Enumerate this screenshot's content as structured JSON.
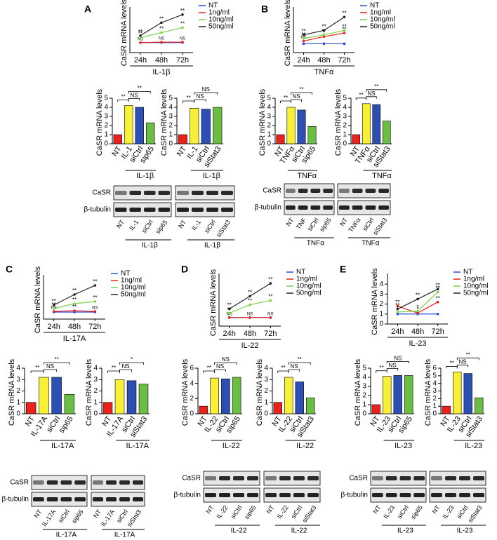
{
  "chart_data": [
    {
      "type": "line",
      "letter": "A",
      "ylabel": "CaSR mRNA levels",
      "xlabel": "IL-1β",
      "categories": [
        "24h",
        "48h",
        "72h"
      ],
      "ylim": [
        0,
        4
      ],
      "series": [
        {
          "name": "NT",
          "color": "#2b4bd6",
          "values": [
            1,
            1,
            1
          ],
          "annotations": [
            null,
            null,
            null
          ]
        },
        {
          "name": "1ng/ml",
          "color": "#e0251f",
          "values": [
            1,
            1.05,
            1.05
          ],
          "annotations": [
            "NS",
            "NS",
            "NS"
          ]
        },
        {
          "name": "10ng/ml",
          "color": "#7fd14a",
          "values": [
            1.5,
            2,
            2.5
          ],
          "annotations": [
            "**",
            "**",
            "**"
          ]
        },
        {
          "name": "50ng/ml",
          "color": "#222222",
          "values": [
            1.7,
            3,
            3.8
          ],
          "annotations": [
            "**",
            "**",
            "**"
          ]
        }
      ]
    },
    {
      "type": "bar",
      "ylabel": "CaSR mRNA levels",
      "categories": [
        "NT",
        "IL-1",
        "siCtrl",
        "sip65"
      ],
      "group": "IL-1β",
      "colors": [
        "#e8231e",
        "#f7ef3a",
        "#2d4fb0",
        "#6cbd45"
      ],
      "values": [
        1,
        4.2,
        4,
        2.3
      ],
      "ylim": [
        0,
        5
      ],
      "yticks": [
        0,
        1,
        2,
        3,
        4,
        5
      ],
      "brackets": [
        {
          "label": "**",
          "between": [
            "NT",
            "IL-1"
          ]
        },
        {
          "label": "NS",
          "between": [
            "IL-1",
            "siCtrl"
          ]
        },
        {
          "label": "**",
          "between": [
            "IL-1",
            "sip65"
          ]
        }
      ]
    },
    {
      "type": "bar",
      "ylabel": "CaSR mRNA levels",
      "categories": [
        "NT",
        "IL-1",
        "siCtrl",
        "siStat3"
      ],
      "group": "IL-1β",
      "colors": [
        "#e8231e",
        "#f7ef3a",
        "#2d4fb0",
        "#6cbd45"
      ],
      "values": [
        1,
        3.9,
        3.8,
        4
      ],
      "ylim": [
        0,
        5
      ],
      "yticks": [
        0,
        1,
        2,
        3,
        4,
        5
      ],
      "brackets": [
        {
          "label": "**",
          "between": [
            "NT",
            "IL-1"
          ]
        },
        {
          "label": "NS",
          "between": [
            "IL-1",
            "siCtrl"
          ]
        },
        {
          "label": "NS",
          "between": [
            "IL-1",
            "siStat3"
          ]
        }
      ]
    },
    {
      "type": "line",
      "letter": "B",
      "ylabel": "CaSR mRNA levels",
      "xlabel": "TNFα",
      "categories": [
        "24h",
        "48h",
        "72h"
      ],
      "ylim": [
        0,
        4.5
      ],
      "series": [
        {
          "name": "NT",
          "color": "#2b4bd6",
          "values": [
            1,
            1,
            1
          ],
          "annotations": [
            null,
            null,
            null
          ]
        },
        {
          "name": "1ng/ml",
          "color": "#e0251f",
          "values": [
            1.3,
            1.8,
            2.2
          ],
          "annotations": [
            "NS",
            "*",
            "**"
          ]
        },
        {
          "name": "10ng/ml",
          "color": "#7fd14a",
          "values": [
            1.6,
            2,
            2.5
          ],
          "annotations": [
            "**",
            "**",
            "**"
          ]
        },
        {
          "name": "50ng/ml",
          "color": "#222222",
          "values": [
            2,
            2.5,
            4
          ],
          "annotations": [
            "**",
            "**",
            "**"
          ]
        }
      ]
    },
    {
      "type": "bar",
      "ylabel": "CaSR mRNA levels",
      "categories": [
        "NT",
        "TNFα",
        "siCtrl",
        "sip65"
      ],
      "group": "TNFα",
      "colors": [
        "#e8231e",
        "#f7ef3a",
        "#2d4fb0",
        "#6cbd45"
      ],
      "values": [
        1,
        4,
        3.7,
        1.9
      ],
      "ylim": [
        0,
        5
      ],
      "yticks": [
        0,
        1,
        2,
        3,
        4,
        5
      ],
      "brackets": [
        {
          "label": "**",
          "between": [
            "NT",
            "TNFα"
          ]
        },
        {
          "label": "NS",
          "between": [
            "TNFα",
            "siCtrl"
          ]
        },
        {
          "label": "**",
          "between": [
            "TNFα",
            "sip65"
          ]
        }
      ]
    },
    {
      "type": "bar",
      "ylabel": "CaSR mRNA levels",
      "categories": [
        "NT",
        "TNFα",
        "siCtrl",
        "siStat3"
      ],
      "group": "TNFα",
      "colors": [
        "#e8231e",
        "#f7ef3a",
        "#2d4fb0",
        "#6cbd45"
      ],
      "values": [
        1,
        4.4,
        4.3,
        2.5
      ],
      "ylim": [
        0,
        5
      ],
      "yticks": [
        0,
        1,
        2,
        3,
        4,
        5
      ],
      "brackets": [
        {
          "label": "**",
          "between": [
            "NT",
            "TNFα"
          ]
        },
        {
          "label": "NS",
          "between": [
            "TNFα",
            "siCtrl"
          ]
        },
        {
          "label": "**",
          "between": [
            "TNFα",
            "siStat3"
          ]
        }
      ]
    },
    {
      "type": "line",
      "letter": "C",
      "ylabel": "CaSR mRNA levels",
      "xlabel": "IL-17A",
      "categories": [
        "24h",
        "48h",
        "72h"
      ],
      "ylim": [
        0,
        5.5
      ],
      "series": [
        {
          "name": "NT",
          "color": "#2b4bd6",
          "values": [
            1,
            1,
            1
          ],
          "annotations": [
            null,
            null,
            null
          ]
        },
        {
          "name": "1ng/ml",
          "color": "#e0251f",
          "values": [
            1.1,
            1.2,
            1.1
          ],
          "annotations": [
            "NS",
            "**",
            "NS"
          ]
        },
        {
          "name": "10ng/ml",
          "color": "#7fd14a",
          "values": [
            1.5,
            2.2,
            2.5
          ],
          "annotations": [
            "**",
            "**",
            "**"
          ]
        },
        {
          "name": "50ng/ml",
          "color": "#222222",
          "values": [
            2,
            3.5,
            4.8
          ],
          "annotations": [
            "**",
            "**",
            "**"
          ]
        }
      ]
    },
    {
      "type": "bar",
      "ylabel": "CaSR mRNA levels",
      "categories": [
        "NT",
        "IL-17A",
        "siCtrl",
        "sip65"
      ],
      "group": "IL-17A",
      "colors": [
        "#e8231e",
        "#f7ef3a",
        "#2d4fb0",
        "#6cbd45"
      ],
      "values": [
        1,
        3.2,
        3.2,
        1.7
      ],
      "ylim": [
        0,
        4
      ],
      "yticks": [
        0,
        1,
        2,
        3,
        4
      ],
      "brackets": [
        {
          "label": "**",
          "between": [
            "NT",
            "IL-17A"
          ]
        },
        {
          "label": "NS",
          "between": [
            "IL-17A",
            "siCtrl"
          ]
        },
        {
          "label": "**",
          "between": [
            "IL-17A",
            "sip65"
          ]
        }
      ]
    },
    {
      "type": "bar",
      "ylabel": "CaSR mRNA levels",
      "categories": [
        "NT",
        "IL-17A",
        "siCtrl",
        "siStat3"
      ],
      "group": "IL-17A",
      "colors": [
        "#e8231e",
        "#f7ef3a",
        "#2d4fb0",
        "#6cbd45"
      ],
      "values": [
        1,
        3,
        2.9,
        2.6
      ],
      "ylim": [
        0,
        4
      ],
      "yticks": [
        0,
        1,
        2,
        3,
        4
      ],
      "brackets": [
        {
          "label": "**",
          "between": [
            "NT",
            "IL-17A"
          ]
        },
        {
          "label": "NS",
          "between": [
            "IL-17A",
            "siCtrl"
          ]
        },
        {
          "label": "*",
          "between": [
            "IL-17A",
            "siStat3"
          ]
        }
      ]
    },
    {
      "type": "line",
      "letter": "D",
      "ylabel": "CaSR mRNA levels",
      "xlabel": "IL-22",
      "categories": [
        "24h",
        "48h",
        "72h"
      ],
      "ylim": [
        0,
        5.5
      ],
      "series": [
        {
          "name": "NT",
          "color": "#2b4bd6",
          "values": [
            1,
            1,
            1
          ],
          "annotations": [
            null,
            null,
            null
          ]
        },
        {
          "name": "1ng/ml",
          "color": "#e0251f",
          "values": [
            1,
            1,
            1
          ],
          "annotations": [
            "NS",
            "NS",
            "NS"
          ]
        },
        {
          "name": "10ng/ml",
          "color": "#7fd14a",
          "values": [
            1.5,
            2.5,
            3
          ],
          "annotations": [
            "**",
            "**",
            "**"
          ]
        },
        {
          "name": "50ng/ml",
          "color": "#222222",
          "values": [
            2,
            3.5,
            5
          ],
          "annotations": [
            "**",
            "**",
            "**"
          ]
        }
      ]
    },
    {
      "type": "bar",
      "ylabel": "CaSR mRNA levels",
      "categories": [
        "NT",
        "IL-22",
        "siCtrl",
        "sip65"
      ],
      "group": "IL-22",
      "colors": [
        "#e8231e",
        "#f7ef3a",
        "#2d4fb0",
        "#6cbd45"
      ],
      "values": [
        1,
        4.7,
        4.6,
        4.8
      ],
      "ylim": [
        0,
        6
      ],
      "yticks": [
        0,
        2,
        4,
        6
      ],
      "brackets": [
        {
          "label": "**",
          "between": [
            "NT",
            "IL-22"
          ]
        },
        {
          "label": "NS",
          "between": [
            "IL-22",
            "siCtrl"
          ]
        },
        {
          "label": "NS",
          "between": [
            "IL-22",
            "sip65"
          ]
        }
      ]
    },
    {
      "type": "bar",
      "ylabel": "CaSR mRNA levels",
      "categories": [
        "NT",
        "IL-22",
        "siCtrl",
        "siStat3"
      ],
      "group": "IL-22",
      "colors": [
        "#e8231e",
        "#f7ef3a",
        "#2d4fb0",
        "#6cbd45"
      ],
      "values": [
        1,
        3.2,
        2.8,
        1.4
      ],
      "ylim": [
        0,
        4
      ],
      "yticks": [
        0,
        1,
        2,
        3,
        4
      ],
      "brackets": [
        {
          "label": "**",
          "between": [
            "NT",
            "IL-22"
          ]
        },
        {
          "label": "NS",
          "between": [
            "IL-22",
            "siCtrl"
          ]
        },
        {
          "label": "**",
          "between": [
            "IL-22",
            "siStat3"
          ]
        }
      ]
    },
    {
      "type": "line",
      "letter": "E",
      "ylabel": "CaSR mRNA levels",
      "xlabel": "IL-23",
      "categories": [
        "24h",
        "48h",
        "72h"
      ],
      "ylim": [
        0,
        4.5
      ],
      "yticks": [
        0,
        1,
        2,
        3,
        4
      ],
      "series": [
        {
          "name": "NT",
          "color": "#2b4bd6",
          "values": [
            1,
            1,
            1
          ],
          "annotations": [
            null,
            null,
            null
          ]
        },
        {
          "name": "1ng/ml",
          "color": "#e0251f",
          "values": [
            1.8,
            1.1,
            2.2
          ],
          "annotations": [
            "**",
            "*",
            "**"
          ]
        },
        {
          "name": "10ng/ml",
          "color": "#7fd14a",
          "values": [
            1.2,
            1.3,
            3.2
          ],
          "annotations": [
            "*",
            "*",
            "**"
          ]
        },
        {
          "name": "50ng/ml",
          "color": "#222222",
          "values": [
            1.5,
            2.5,
            3.5
          ],
          "annotations": [
            "**",
            "**",
            "**"
          ]
        }
      ]
    },
    {
      "type": "bar",
      "ylabel": "CaSR mRNA levels",
      "categories": [
        "NT",
        "IL-23",
        "siCtrl",
        "sip65"
      ],
      "group": "IL-23",
      "colors": [
        "#e8231e",
        "#f7ef3a",
        "#2d4fb0",
        "#6cbd45"
      ],
      "values": [
        1,
        4.1,
        4.2,
        4.2
      ],
      "ylim": [
        0,
        5
      ],
      "yticks": [
        0,
        1,
        2,
        3,
        4,
        5
      ],
      "brackets": [
        {
          "label": "**",
          "between": [
            "NT",
            "IL-23"
          ]
        },
        {
          "label": "NS",
          "between": [
            "IL-23",
            "siCtrl"
          ]
        },
        {
          "label": "NS",
          "between": [
            "IL-23",
            "sip65"
          ]
        }
      ]
    },
    {
      "type": "bar",
      "ylabel": "CaSR mRNA levels",
      "categories": [
        "NT",
        "IL-23",
        "siCtrl",
        "siStat3"
      ],
      "group": "IL-23",
      "colors": [
        "#e8231e",
        "#f7ef3a",
        "#2d4fb0",
        "#6cbd45"
      ],
      "values": [
        1,
        5.5,
        5.3,
        2.1
      ],
      "ylim": [
        0,
        6
      ],
      "yticks": [
        0,
        1,
        2,
        3,
        4,
        5,
        6
      ],
      "brackets": [
        {
          "label": "**",
          "between": [
            "NT",
            "IL-23"
          ]
        },
        {
          "label": "NS",
          "between": [
            "IL-23",
            "siCtrl"
          ]
        },
        {
          "label": "**",
          "between": [
            "IL-23",
            "siStat3"
          ]
        }
      ]
    }
  ],
  "blots": [
    {
      "rows": [
        "CaSR",
        "β-tubulin"
      ],
      "blocks": [
        {
          "lanes": [
            "NT",
            "IL-1",
            "siCtrl",
            "sip65"
          ],
          "group": "IL-1β"
        },
        {
          "lanes": [
            "NT",
            "IL-1",
            "siCtrl",
            "siStat3"
          ],
          "group": "IL-1β"
        }
      ]
    },
    {
      "rows": [
        "CaSR",
        "β-tubulin"
      ],
      "blocks": [
        {
          "lanes": [
            "NT",
            "TNF",
            "siCtrl",
            "sip65"
          ],
          "group": "TNFα"
        },
        {
          "lanes": [
            "NT",
            "TNFα",
            "siCtrl",
            "siStat3"
          ],
          "group": "TNFα"
        }
      ]
    },
    {
      "rows": [
        "CaSR",
        "β-tubulin"
      ],
      "blocks": [
        {
          "lanes": [
            "NT",
            "IL-17A",
            "siCtrl",
            "sip65"
          ],
          "group": "IL-17A"
        },
        {
          "lanes": [
            "NT",
            "IL-17A",
            "siCtrl",
            "siStat3"
          ],
          "group": "IL-17A"
        }
      ]
    },
    {
      "rows": [
        "CaSR",
        "β-tubulin"
      ],
      "blocks": [
        {
          "lanes": [
            "NT",
            "IL-22",
            "siCtrl",
            "sip65"
          ],
          "group": "IL-22"
        },
        {
          "lanes": [
            "NT",
            "IL-22",
            "siCtrl",
            "siStat3"
          ],
          "group": "IL-22"
        }
      ]
    },
    {
      "rows": [
        "CaSR",
        "β-tubulin"
      ],
      "blocks": [
        {
          "lanes": [
            "NT",
            "IL-23",
            "siCtrl",
            "sip65"
          ],
          "group": "IL-23"
        },
        {
          "lanes": [
            "NT",
            "IL-23",
            "siCtrl",
            "siStat3"
          ],
          "group": "IL-23"
        }
      ]
    }
  ]
}
